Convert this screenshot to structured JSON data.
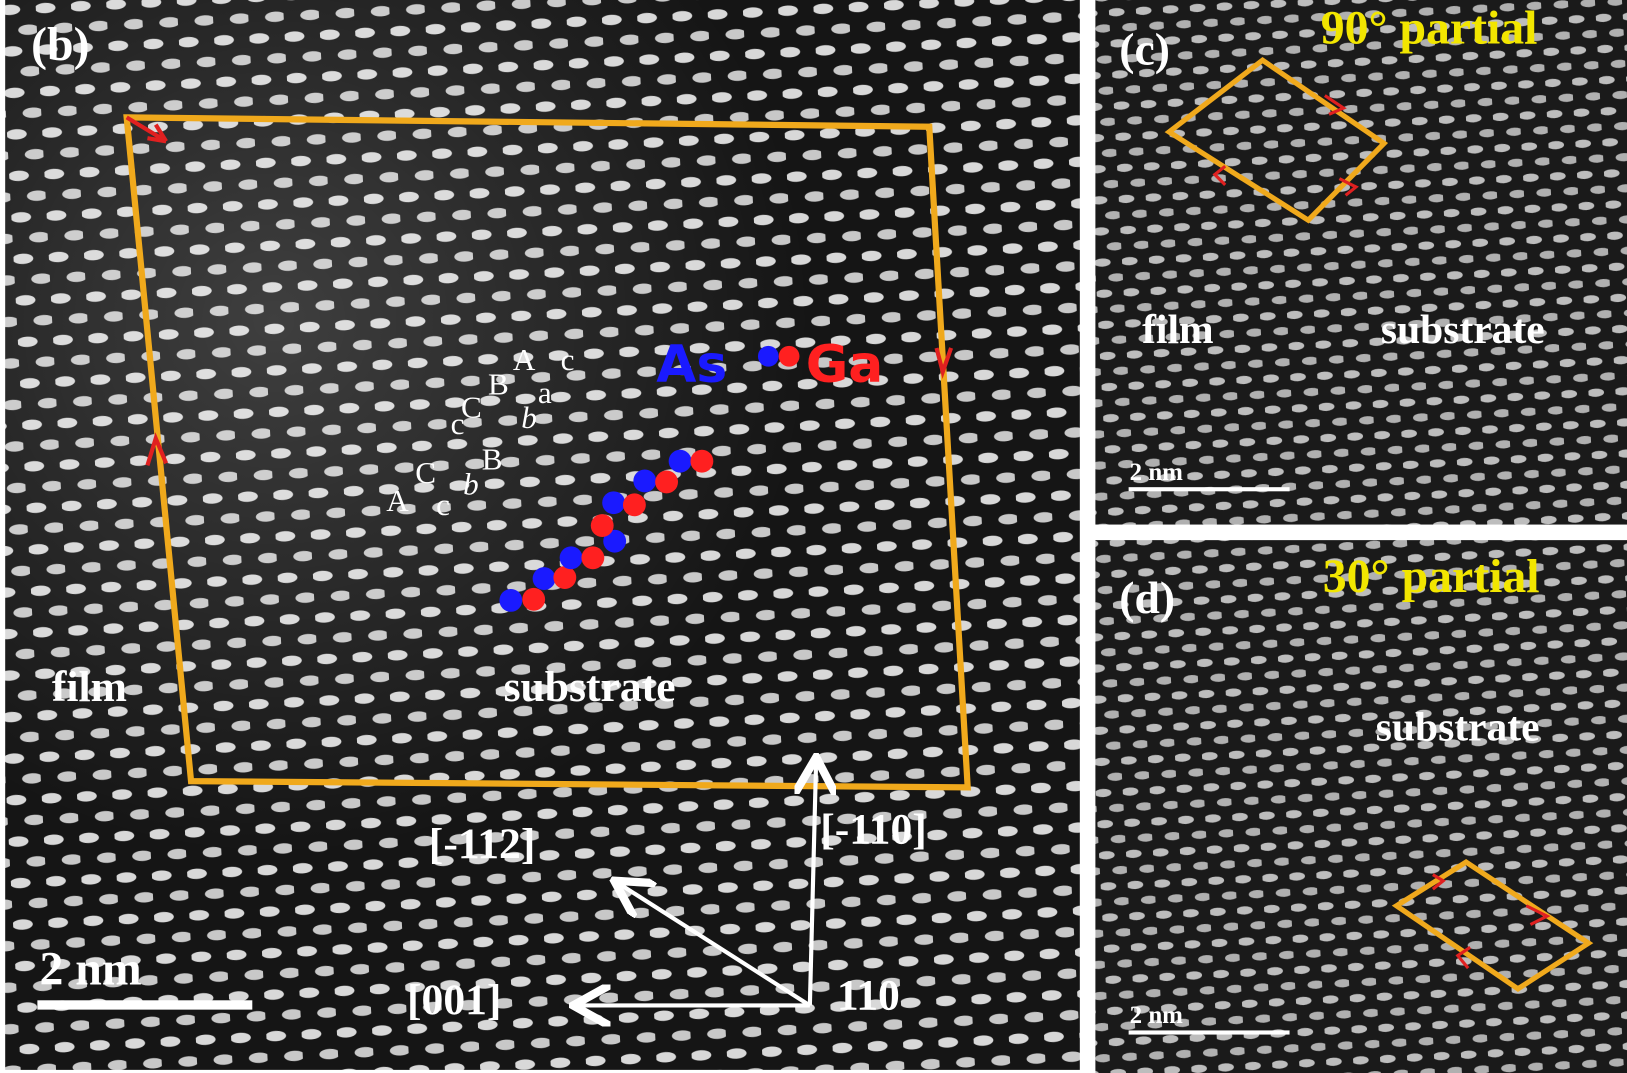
{
  "panel_b": {
    "label": "(b)",
    "regions": [
      "film",
      "substrate"
    ],
    "stacking": [
      "A",
      "c",
      "C",
      "b",
      "B",
      "c",
      "C",
      "b",
      "a",
      "B",
      "A",
      "c"
    ],
    "legend": [
      "As",
      "Ga"
    ],
    "directions": [
      "[-112]",
      "[-110]",
      "[001]",
      "110"
    ],
    "scale_bar": "2 nm"
  },
  "panel_c": {
    "label": "(c)",
    "title": "90° partial",
    "regions": [
      "film",
      "substrate"
    ],
    "scale_bar": "2 nm"
  },
  "panel_d": {
    "label": "(d)",
    "title": "30° partial",
    "regions": [
      "substrate"
    ],
    "scale_bar": "2 nm"
  }
}
